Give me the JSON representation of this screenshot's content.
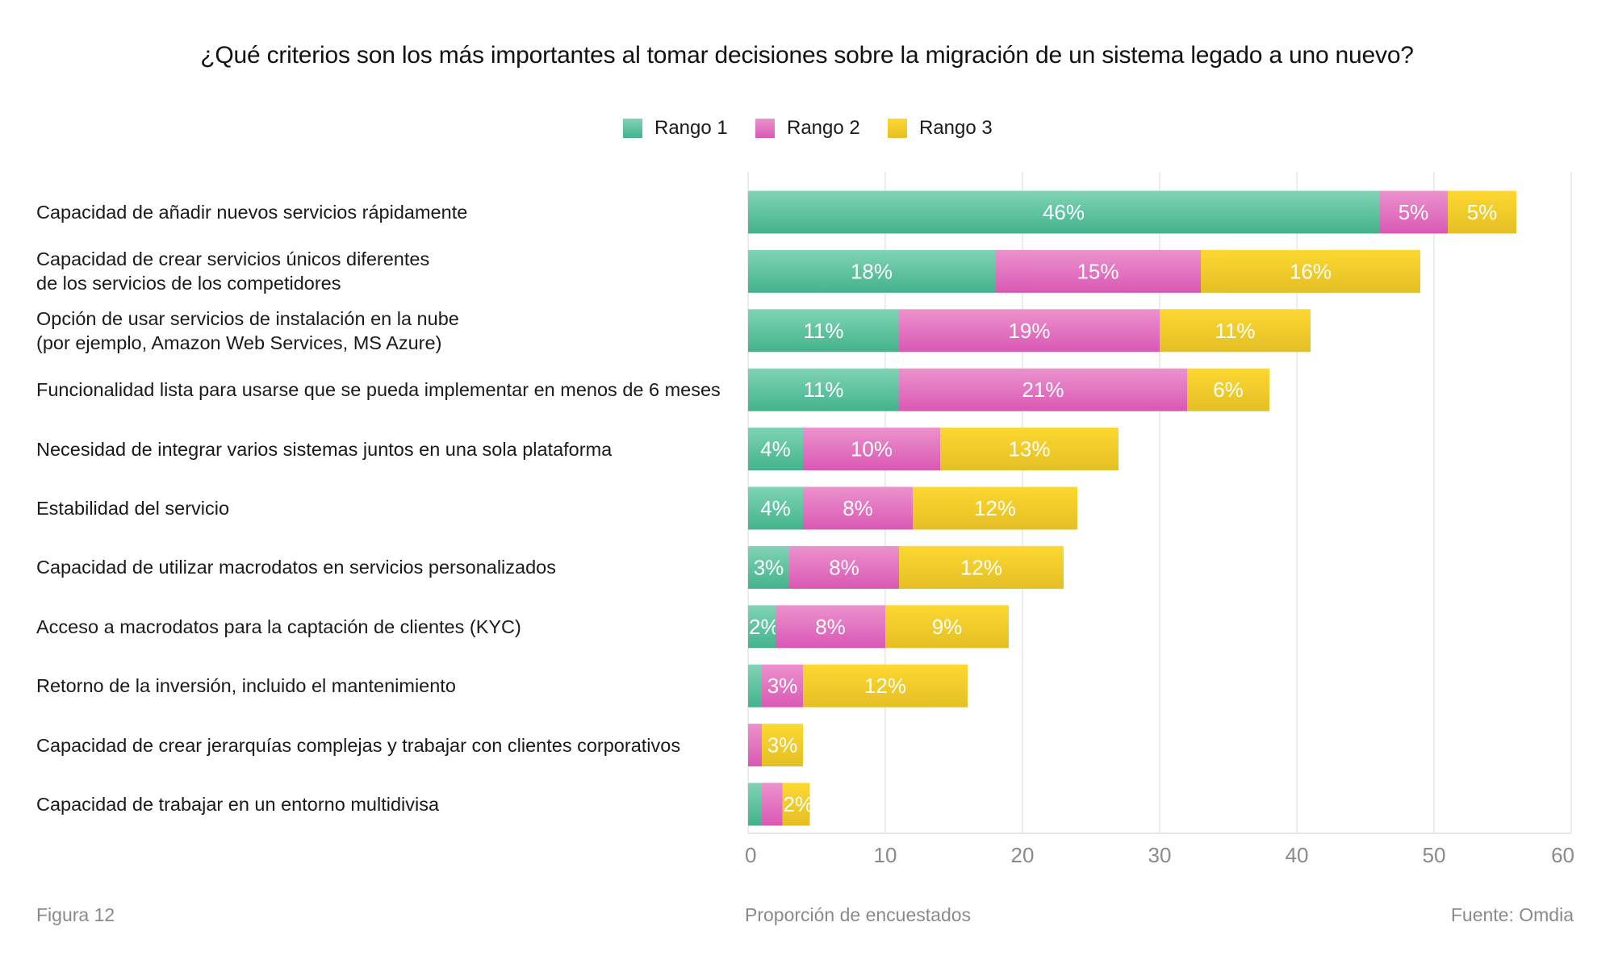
{
  "chart_data": {
    "type": "bar",
    "orientation": "horizontal",
    "stacked": true,
    "title": "¿Qué criterios son los más importantes al tomar decisiones sobre la migración de un sistema legado a uno nuevo?",
    "xlabel": "Proporción de encuestados",
    "ylabel": "",
    "xlim": [
      0,
      60
    ],
    "xticks": [
      0,
      10,
      20,
      30,
      40,
      50,
      60
    ],
    "grid": true,
    "legend_position": "top-center",
    "categories": [
      [
        "Capacidad de añadir nuevos servicios rápidamente"
      ],
      [
        "Capacidad de crear servicios únicos diferentes",
        "de los servicios de los competidores"
      ],
      [
        "Opción de usar servicios de instalación en la nube",
        "(por ejemplo, Amazon Web Services, MS Azure)"
      ],
      [
        "Funcionalidad lista para usarse que se pueda implementar en menos de 6 meses"
      ],
      [
        "Necesidad de integrar varios sistemas juntos en una sola plataforma"
      ],
      [
        "Estabilidad del servicio"
      ],
      [
        "Capacidad de utilizar macrodatos en servicios personalizados"
      ],
      [
        "Acceso a macrodatos para la captación de clientes (KYC)"
      ],
      [
        "Retorno de la inversión, incluido el mantenimiento"
      ],
      [
        "Capacidad de crear jerarquías complejas y trabajar con clientes corporativos"
      ],
      [
        "Capacidad de trabajar en un entorno multidivisa"
      ]
    ],
    "series": [
      {
        "name": "Rango 1",
        "color_top": "#7fd4b5",
        "color_bottom": "#43b38c",
        "values": [
          46,
          18,
          11,
          11,
          4,
          4,
          3,
          2,
          1,
          0,
          1
        ],
        "labels": [
          "46%",
          "18%",
          "11%",
          "11%",
          "4%",
          "4%",
          "3%",
          "2%",
          "",
          "",
          ""
        ]
      },
      {
        "name": "Rango 2",
        "color_top": "#ec92cd",
        "color_bottom": "#d958b4",
        "values": [
          5,
          15,
          19,
          21,
          10,
          8,
          8,
          8,
          3,
          1,
          1.5
        ],
        "labels": [
          "5%",
          "15%",
          "19%",
          "21%",
          "10%",
          "8%",
          "8%",
          "8%",
          "3%",
          "",
          ""
        ]
      },
      {
        "name": "Rango 3",
        "color_top": "#fdd830",
        "color_bottom": "#e4bf25",
        "values": [
          5,
          16,
          11,
          6,
          13,
          12,
          12,
          9,
          12,
          3,
          2
        ],
        "labels": [
          "5%",
          "16%",
          "11%",
          "6%",
          "13%",
          "12%",
          "12%",
          "9%",
          "12%",
          "3%",
          "2%"
        ]
      }
    ]
  },
  "footer": {
    "figure": "Figura 12",
    "axis_title": "Proporción de encuestados",
    "source": "Fuente: Omdia"
  },
  "colors": {
    "grid": "#e6e6e6",
    "tick_text": "#8a8a8a",
    "label_text": "#ffffff"
  }
}
